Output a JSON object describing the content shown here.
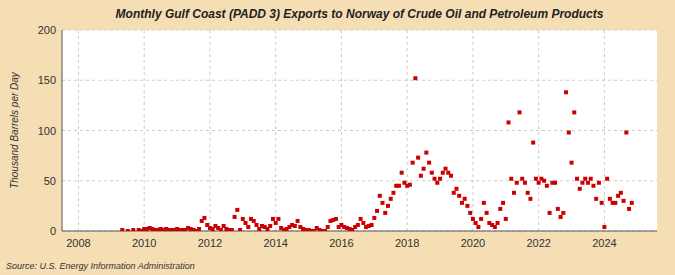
{
  "chart_data": {
    "type": "scatter",
    "title": "Monthly Gulf Coast (PADD 3) Exports to Norway of Crude Oil and Petroleum Products",
    "y_label": "Thousand Barrels per Day",
    "annotations": [
      "Source: U.S. Energy Information Administration"
    ],
    "color": "#cc0000",
    "marker": "square",
    "grid": true,
    "ylim": [
      0,
      200
    ],
    "yticks": [
      0,
      50,
      100,
      150,
      200
    ],
    "xlim": [
      2007.5,
      2025.6
    ],
    "xticks": [
      2008,
      2010,
      2012,
      2014,
      2016,
      2018,
      2020,
      2022,
      2024
    ],
    "x": [
      2009.333,
      2009.5,
      2009.667,
      2009.833,
      2009.917,
      2010.0,
      2010.083,
      2010.167,
      2010.25,
      2010.333,
      2010.417,
      2010.5,
      2010.583,
      2010.667,
      2010.75,
      2010.833,
      2010.917,
      2011.0,
      2011.083,
      2011.167,
      2011.25,
      2011.333,
      2011.417,
      2011.5,
      2011.583,
      2011.667,
      2011.75,
      2011.833,
      2011.917,
      2012.0,
      2012.083,
      2012.167,
      2012.25,
      2012.333,
      2012.417,
      2012.5,
      2012.583,
      2012.667,
      2012.75,
      2012.833,
      2012.917,
      2013.0,
      2013.083,
      2013.167,
      2013.25,
      2013.333,
      2013.417,
      2013.5,
      2013.583,
      2013.667,
      2013.75,
      2013.833,
      2013.917,
      2014.0,
      2014.083,
      2014.167,
      2014.25,
      2014.333,
      2014.417,
      2014.5,
      2014.583,
      2014.667,
      2014.75,
      2014.833,
      2014.917,
      2015.0,
      2015.083,
      2015.167,
      2015.25,
      2015.333,
      2015.417,
      2015.5,
      2015.583,
      2015.667,
      2015.75,
      2015.833,
      2015.917,
      2016.0,
      2016.083,
      2016.167,
      2016.25,
      2016.333,
      2016.417,
      2016.5,
      2016.583,
      2016.667,
      2016.75,
      2016.833,
      2016.917,
      2017.0,
      2017.083,
      2017.167,
      2017.25,
      2017.333,
      2017.417,
      2017.5,
      2017.583,
      2017.667,
      2017.75,
      2017.833,
      2017.917,
      2018.0,
      2018.083,
      2018.167,
      2018.25,
      2018.333,
      2018.417,
      2018.5,
      2018.583,
      2018.667,
      2018.75,
      2018.833,
      2018.917,
      2019.0,
      2019.083,
      2019.167,
      2019.25,
      2019.333,
      2019.417,
      2019.5,
      2019.583,
      2019.667,
      2019.75,
      2019.833,
      2019.917,
      2020.0,
      2020.083,
      2020.167,
      2020.25,
      2020.333,
      2020.417,
      2020.5,
      2020.583,
      2020.667,
      2020.75,
      2020.833,
      2020.917,
      2021.0,
      2021.083,
      2021.167,
      2021.25,
      2021.333,
      2021.417,
      2021.5,
      2021.583,
      2021.667,
      2021.75,
      2021.833,
      2021.917,
      2022.0,
      2022.083,
      2022.167,
      2022.25,
      2022.333,
      2022.417,
      2022.5,
      2022.583,
      2022.667,
      2022.75,
      2022.833,
      2022.917,
      2023.0,
      2023.083,
      2023.167,
      2023.25,
      2023.333,
      2023.417,
      2023.5,
      2023.583,
      2023.667,
      2023.75,
      2023.833,
      2023.917,
      2024.0,
      2024.083,
      2024.167,
      2024.25,
      2024.333,
      2024.417,
      2024.5,
      2024.583,
      2024.667,
      2024.75,
      2024.833
    ],
    "values": [
      1,
      0,
      1,
      1,
      0,
      2,
      2,
      3,
      2,
      1,
      1,
      2,
      1,
      2,
      1,
      1,
      1,
      2,
      1,
      1,
      1,
      3,
      2,
      1,
      0,
      2,
      10,
      13,
      6,
      3,
      2,
      5,
      3,
      1,
      5,
      2,
      1,
      1,
      14,
      21,
      1,
      12,
      8,
      4,
      12,
      10,
      6,
      2,
      5,
      4,
      2,
      5,
      12,
      8,
      12,
      3,
      1,
      2,
      4,
      6,
      5,
      10,
      4,
      2,
      1,
      1,
      0,
      0,
      3,
      1,
      0,
      0,
      4,
      10,
      11,
      12,
      4,
      6,
      4,
      3,
      2,
      1,
      4,
      6,
      12,
      8,
      4,
      5,
      6,
      13,
      20,
      35,
      28,
      18,
      25,
      32,
      38,
      45,
      45,
      58,
      48,
      45,
      46,
      68,
      152,
      73,
      55,
      62,
      78,
      68,
      58,
      52,
      48,
      52,
      58,
      62,
      58,
      55,
      38,
      42,
      35,
      28,
      32,
      25,
      18,
      12,
      8,
      4,
      12,
      28,
      18,
      8,
      6,
      4,
      8,
      22,
      28,
      12,
      108,
      52,
      38,
      48,
      118,
      52,
      48,
      38,
      32,
      88,
      52,
      48,
      52,
      50,
      45,
      18,
      48,
      48,
      22,
      14,
      18,
      138,
      98,
      68,
      118,
      52,
      42,
      48,
      52,
      48,
      52,
      45,
      32,
      48,
      28,
      4,
      52,
      32,
      28,
      28,
      35,
      38,
      30,
      98,
      22,
      28
    ]
  }
}
